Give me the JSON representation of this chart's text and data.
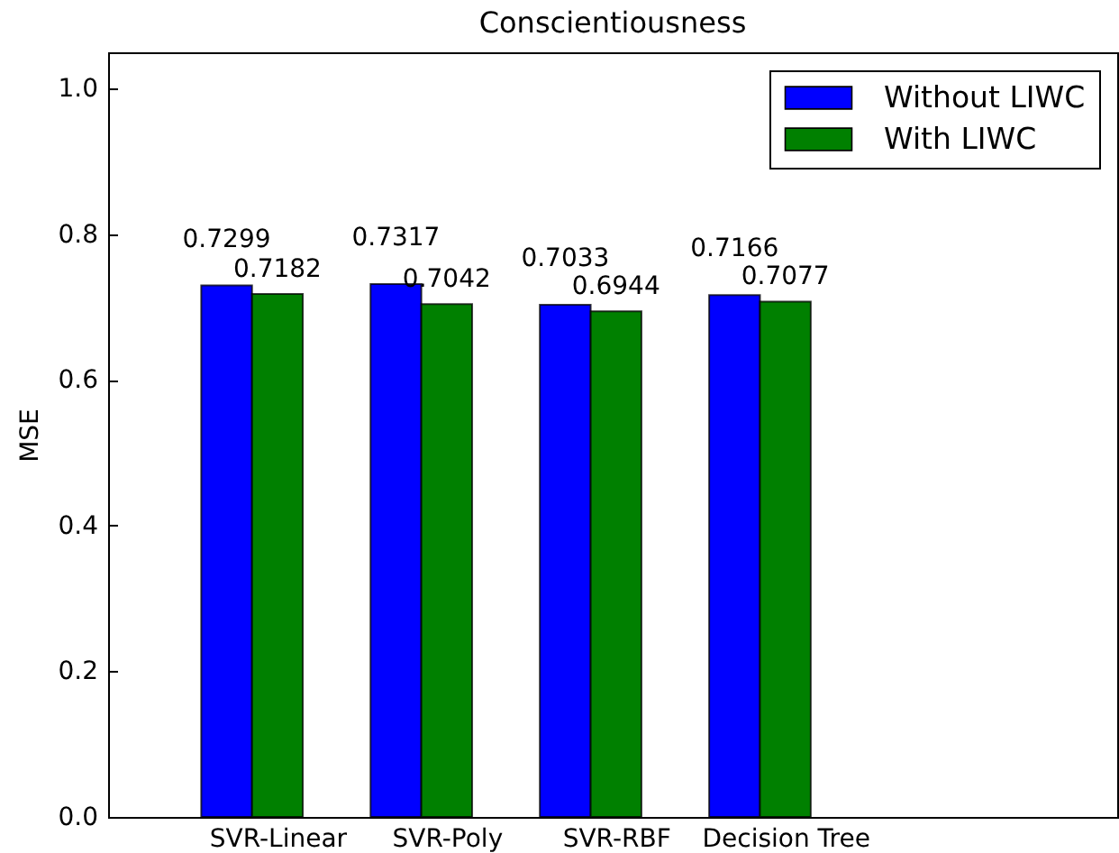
{
  "chart_data": {
    "type": "bar",
    "title": "Conscientiousness",
    "ylabel": "MSE",
    "categories": [
      "SVR-Linear",
      "SVR-Poly",
      "SVR-RBF",
      "Decision Tree"
    ],
    "series": [
      {
        "name": "Without LIWC",
        "color": "#0000ff",
        "values": [
          0.7299,
          0.7317,
          0.7033,
          0.7166
        ]
      },
      {
        "name": "With LIWC",
        "color": "#008000",
        "values": [
          0.7182,
          0.7042,
          0.6944,
          0.7077
        ]
      }
    ],
    "ylim": [
      0,
      1.05
    ],
    "yticks": [
      {
        "value": 0,
        "label": "0.0"
      },
      0.2,
      0.4,
      0.6,
      0.8,
      {
        "value": 1,
        "label": "1.0"
      }
    ],
    "data_labels": true,
    "legend": "top right",
    "grid": false
  }
}
